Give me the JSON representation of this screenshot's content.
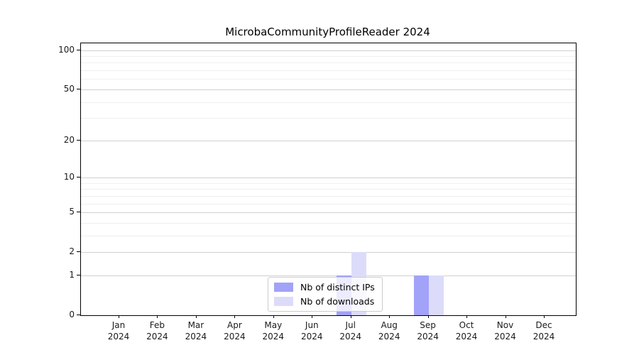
{
  "title": "MicrobaCommunityProfileReader 2024",
  "chart_data": {
    "type": "bar",
    "title": "MicrobaCommunityProfileReader 2024",
    "categories": [
      "Jan",
      "Feb",
      "Mar",
      "Apr",
      "May",
      "Jun",
      "Jul",
      "Aug",
      "Sep",
      "Oct",
      "Nov",
      "Dec"
    ],
    "category_year": "2024",
    "series": [
      {
        "name": "Nb of distinct IPs",
        "color": "#a2a2f8",
        "values": [
          0,
          0,
          0,
          0,
          0,
          0,
          1,
          0,
          1,
          0,
          0,
          0
        ]
      },
      {
        "name": "Nb of downloads",
        "color": "#dcdcfa",
        "values": [
          0,
          0,
          0,
          0,
          0,
          0,
          2,
          0,
          1,
          0,
          0,
          0
        ]
      }
    ],
    "xlabel": "",
    "ylabel": "",
    "y_axis": {
      "scale": "log10(1+v) symlog-like",
      "major_ticks": [
        0,
        1,
        2,
        5,
        10,
        20,
        50,
        100
      ],
      "minor_gridlines": [
        3,
        4,
        6,
        7,
        8,
        9,
        30,
        40,
        60,
        70,
        80,
        90
      ],
      "ylim": [
        0,
        112
      ]
    },
    "grid": "on",
    "legend_position": "lower center inside axes",
    "colors": {
      "background": "#ffffff",
      "axis": "#000000",
      "grid_major": "#d0d0d0",
      "grid_minor": "#efefef",
      "tick_text": "#1a1a1a",
      "legend_border": "#cccccc"
    }
  }
}
